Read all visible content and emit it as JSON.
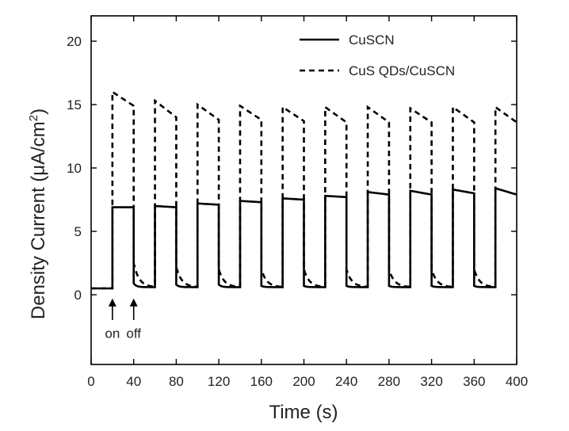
{
  "chart_data": {
    "type": "line",
    "title": "",
    "xlabel": "Time (s)",
    "ylabel_main": "Density Current (",
    "ylabel_unit": "μA/cm",
    "ylabel_sup": "2",
    "ylabel_close": ")",
    "xlim": [
      0,
      400
    ],
    "ylim": [
      -5.5,
      22
    ],
    "xticks": [
      0,
      40,
      80,
      120,
      160,
      200,
      240,
      280,
      320,
      360,
      400
    ],
    "xtick_labels": [
      "0",
      "40",
      "80",
      "120",
      "160",
      "200",
      "240",
      "280",
      "320",
      "360",
      "400"
    ],
    "yticks": [
      0,
      5,
      10,
      15,
      20
    ],
    "ytick_labels": [
      "0",
      "5",
      "10",
      "15",
      "20"
    ],
    "grid": false,
    "legend_position": "top-right",
    "light_cycles": [
      {
        "on": 20,
        "off": 40
      },
      {
        "on": 60,
        "off": 80
      },
      {
        "on": 100,
        "off": 120
      },
      {
        "on": 140,
        "off": 160
      },
      {
        "on": 180,
        "off": 200
      },
      {
        "on": 220,
        "off": 240
      },
      {
        "on": 260,
        "off": 280
      },
      {
        "on": 300,
        "off": 320
      },
      {
        "on": 340,
        "off": 360
      },
      {
        "on": 380,
        "off": 400
      }
    ],
    "series": [
      {
        "name": "CuSCN",
        "style": "solid",
        "baseline": [
          0.5,
          0.6,
          0.6,
          0.6,
          0.6,
          0.6,
          0.6,
          0.6,
          0.6,
          0.6
        ],
        "on_start": [
          6.9,
          7.0,
          7.2,
          7.4,
          7.6,
          7.8,
          8.1,
          8.2,
          8.3,
          8.4
        ],
        "on_end": [
          6.9,
          6.9,
          7.1,
          7.3,
          7.5,
          7.7,
          7.9,
          7.9,
          8.0,
          7.9
        ],
        "off_start": [
          0.9,
          0.8,
          0.8,
          0.7,
          0.7,
          0.7,
          0.7,
          0.7,
          0.7,
          0.7
        ]
      },
      {
        "name": "CuS QDs/CuSCN",
        "style": "dashed",
        "baseline": [
          0.5,
          0.6,
          0.6,
          0.6,
          0.6,
          0.6,
          0.6,
          0.6,
          0.6,
          0.6
        ],
        "on_start": [
          16.0,
          15.3,
          15.0,
          14.9,
          14.8,
          14.8,
          14.8,
          14.7,
          14.8,
          14.8
        ],
        "on_end": [
          14.9,
          14.0,
          13.8,
          13.8,
          13.7,
          13.6,
          13.6,
          13.6,
          13.6,
          13.6
        ],
        "off_start": [
          2.5,
          2.2,
          2.0,
          2.0,
          2.0,
          2.0,
          2.0,
          2.0,
          2.0,
          2.0
        ]
      }
    ],
    "annotations": {
      "on_label": "on",
      "off_label": "off",
      "on_x": 20,
      "off_x": 40
    }
  },
  "colors": {
    "line": "#000000",
    "axis": "#000000"
  }
}
